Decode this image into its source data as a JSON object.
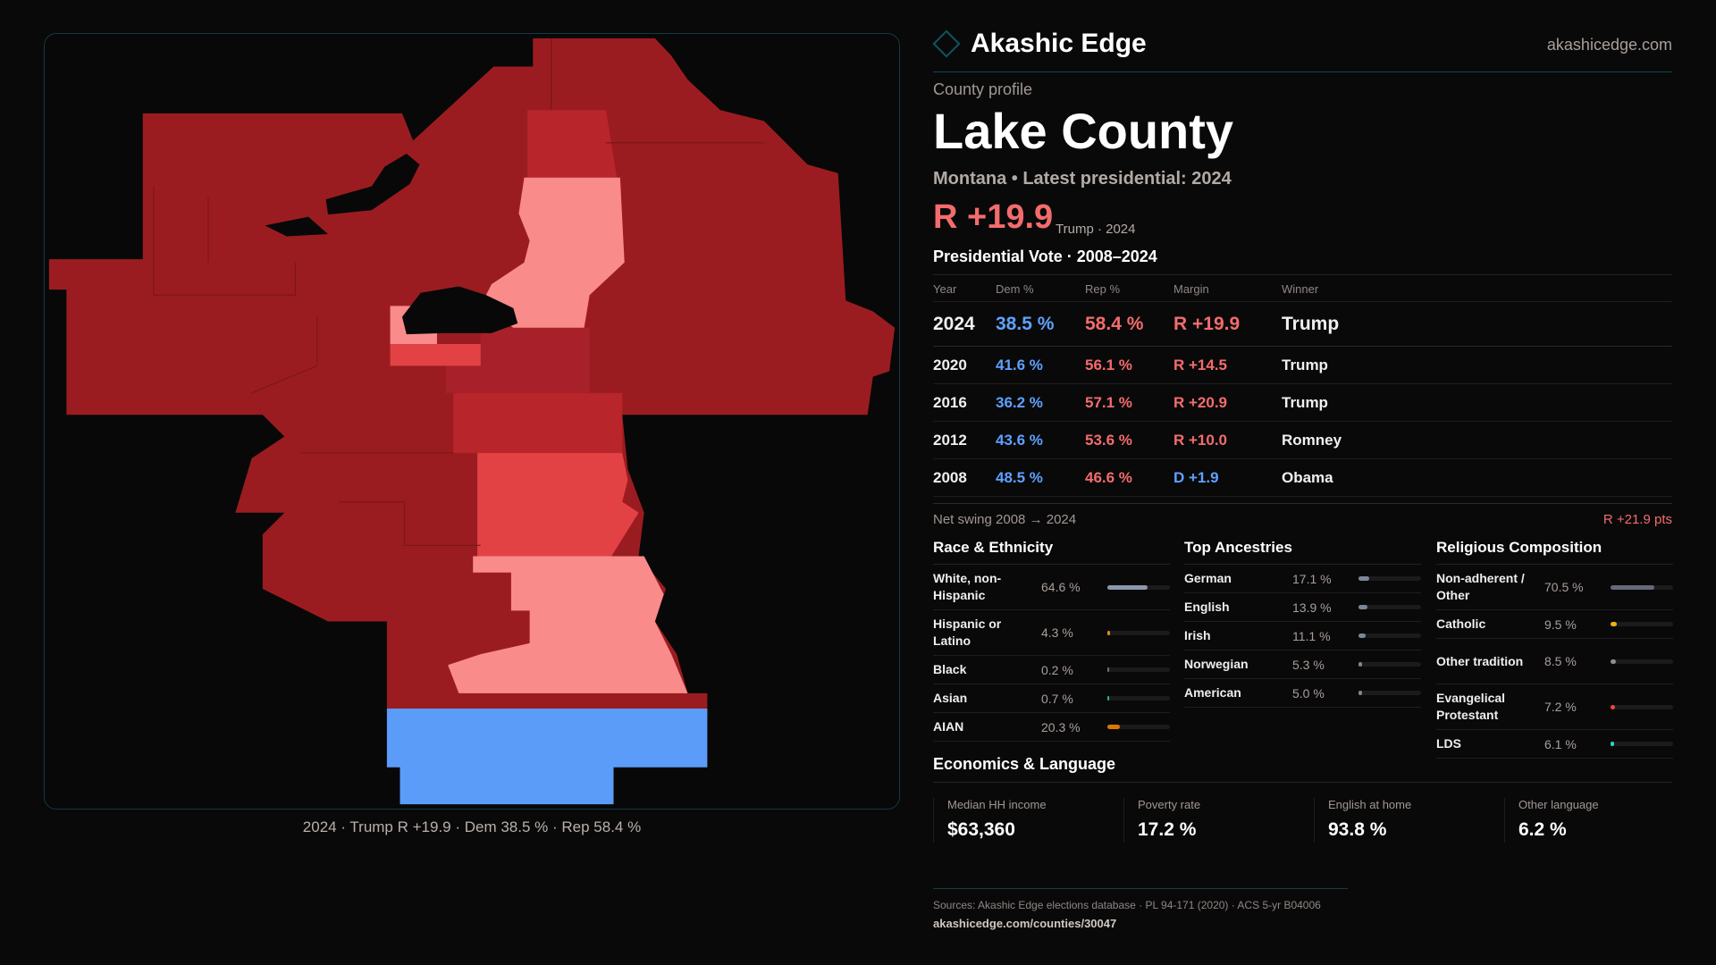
{
  "brand": {
    "name": "Akashic Edge",
    "site": "akashicedge.com"
  },
  "profile": {
    "kicker": "County profile",
    "county": "Lake County",
    "subtitle": "Montana • Latest presidential: 2024",
    "margin": "R +19.9",
    "margin_note": "Trump · 2024"
  },
  "map": {
    "caption": "2024 · Trump R +19.9 · Dem 38.5 % · Rep 58.4 %",
    "colors": {
      "strong_rep": "#9b1c20",
      "rep": "#c0292d",
      "lean_rep": "#e34245",
      "tilt_rep": "#f98b8b",
      "dem": "#5b9cf8"
    }
  },
  "vote": {
    "title": "Presidential Vote · 2008–2024",
    "headers": [
      "Year",
      "Dem %",
      "Rep %",
      "Margin",
      "Winner"
    ],
    "rows": [
      {
        "year": "2024",
        "dem": "38.5 %",
        "rep": "58.4 %",
        "margin": "R +19.9",
        "winner": "Trump",
        "party": "r"
      },
      {
        "year": "2020",
        "dem": "41.6 %",
        "rep": "56.1 %",
        "margin": "R +14.5",
        "winner": "Trump",
        "party": "r"
      },
      {
        "year": "2016",
        "dem": "36.2 %",
        "rep": "57.1 %",
        "margin": "R +20.9",
        "winner": "Trump",
        "party": "r"
      },
      {
        "year": "2012",
        "dem": "43.6 %",
        "rep": "53.6 %",
        "margin": "R +10.0",
        "winner": "Romney",
        "party": "r"
      },
      {
        "year": "2008",
        "dem": "48.5 %",
        "rep": "46.6 %",
        "margin": "D +1.9",
        "winner": "Obama",
        "party": "d"
      }
    ],
    "swing_label": "Net swing 2008 → 2024",
    "swing_value": "R +21.9 pts"
  },
  "sections": [
    {
      "title": "Race & Ethnicity",
      "rows": [
        {
          "label": "White, non-Hispanic",
          "value": "64.6 %",
          "pct": 64.6,
          "color": "#8b97aa"
        },
        {
          "label": "Hispanic or Latino",
          "value": "4.3 %",
          "pct": 4.3,
          "color": "#e08a0c"
        },
        {
          "label": "Black",
          "value": "0.2 %",
          "pct": 0.2,
          "color": "#6b7280"
        },
        {
          "label": "Asian",
          "value": "0.7 %",
          "pct": 0.7,
          "color": "#2bb39a"
        },
        {
          "label": "AIAN",
          "value": "20.3 %",
          "pct": 20.3,
          "color": "#d97706"
        }
      ]
    },
    {
      "title": "Top Ancestries",
      "rows": [
        {
          "label": "German",
          "value": "17.1 %",
          "pct": 17.1,
          "color": "#7c8799"
        },
        {
          "label": "English",
          "value": "13.9 %",
          "pct": 13.9,
          "color": "#7c8799"
        },
        {
          "label": "Irish",
          "value": "11.1 %",
          "pct": 11.1,
          "color": "#7c8799"
        },
        {
          "label": "Norwegian",
          "value": "5.3 %",
          "pct": 5.3,
          "color": "#7c8799"
        },
        {
          "label": "American",
          "value": "5.0 %",
          "pct": 5.0,
          "color": "#7c8799"
        }
      ]
    },
    {
      "title": "Religious Composition",
      "rows": [
        {
          "label": "Non-adherent / Other",
          "value": "70.5 %",
          "pct": 70.5,
          "color": "#646a76"
        },
        {
          "label": "Catholic",
          "value": "9.5 %",
          "pct": 9.5,
          "color": "#eab308"
        },
        {
          "label": "Other tradition",
          "value": "8.5 %",
          "pct": 8.5,
          "color": "#8a8f98"
        },
        {
          "label": "Evangelical Protestant",
          "value": "7.2 %",
          "pct": 7.2,
          "color": "#ef4444"
        },
        {
          "label": "LDS",
          "value": "6.1 %",
          "pct": 6.1,
          "color": "#2dd4bf"
        }
      ]
    }
  ],
  "economics": {
    "title": "Economics & Language",
    "cards": [
      {
        "label": "Median HH income",
        "value": "$63,360"
      },
      {
        "label": "Poverty rate",
        "value": "17.2 %"
      },
      {
        "label": "English at home",
        "value": "93.8 %"
      },
      {
        "label": "Other language",
        "value": "6.2 %"
      }
    ]
  },
  "footer": {
    "sources": "Sources: Akashic Edge elections database · PL 94-171 (2020) · ACS 5-yr B04006",
    "url": "akashicedge.com/counties/30047"
  }
}
